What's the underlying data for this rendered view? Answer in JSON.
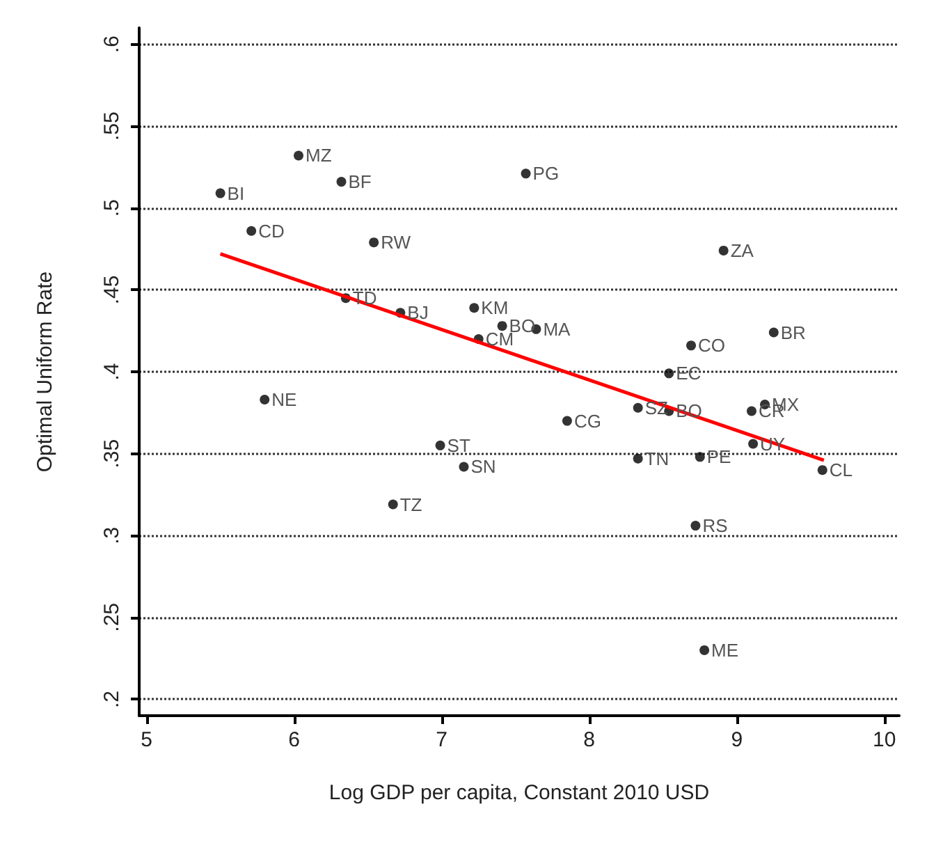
{
  "chart_data": {
    "type": "scatter",
    "xlabel": "Log GDP per capita, Constant 2010 USD",
    "ylabel": "Optimal Uniform Rate",
    "xlim": [
      4.95,
      10.1
    ],
    "xticks": [
      5,
      6,
      7,
      8,
      9,
      10
    ],
    "ylim": [
      0.19,
      0.61
    ],
    "yticks": [
      {
        "value": 0.2,
        "label": ".2"
      },
      {
        "value": 0.25,
        "label": ".25"
      },
      {
        "value": 0.3,
        "label": ".3"
      },
      {
        "value": 0.35,
        "label": ".35"
      },
      {
        "value": 0.4,
        "label": ".4"
      },
      {
        "value": 0.45,
        "label": ".45"
      },
      {
        "value": 0.5,
        "label": ".5"
      },
      {
        "value": 0.55,
        "label": ".55"
      },
      {
        "value": 0.6,
        "label": ".6"
      }
    ],
    "grid": "y",
    "marker": "circle",
    "series": [
      {
        "color": "#000000",
        "x": [
          6.03,
          6.32,
          5.5,
          7.57,
          5.71,
          6.54,
          8.91,
          6.35,
          6.72,
          7.22,
          7.41,
          7.64,
          7.25,
          8.69,
          9.25,
          8.54,
          5.8,
          8.33,
          8.54,
          9.19,
          9.1,
          7.85,
          9.11,
          6.99,
          8.33,
          8.75,
          7.15,
          9.58,
          6.67,
          8.72,
          8.78
        ],
        "values": [
          0.532,
          0.516,
          0.509,
          0.521,
          0.486,
          0.479,
          0.474,
          0.445,
          0.436,
          0.439,
          0.428,
          0.426,
          0.42,
          0.416,
          0.424,
          0.399,
          0.383,
          0.378,
          0.376,
          0.38,
          0.376,
          0.37,
          0.356,
          0.355,
          0.347,
          0.348,
          0.342,
          0.34,
          0.319,
          0.306,
          0.23
        ]
      },
      {
        "type": "line",
        "color": "#ff0000",
        "x": [
          5.5,
          9.59
        ],
        "values": [
          0.472,
          0.346
        ],
        "marker": "none",
        "line_style": "solid"
      }
    ],
    "annotations": [
      {
        "text": "MZ",
        "x": 6.03,
        "y": 0.532
      },
      {
        "text": "BF",
        "x": 6.32,
        "y": 0.516
      },
      {
        "text": "BI",
        "x": 5.5,
        "y": 0.509
      },
      {
        "text": "PG",
        "x": 7.57,
        "y": 0.521
      },
      {
        "text": "CD",
        "x": 5.71,
        "y": 0.486
      },
      {
        "text": "RW",
        "x": 6.54,
        "y": 0.479
      },
      {
        "text": "ZA",
        "x": 8.91,
        "y": 0.474
      },
      {
        "text": "TD",
        "x": 6.35,
        "y": 0.445
      },
      {
        "text": "BJ",
        "x": 6.72,
        "y": 0.436
      },
      {
        "text": "KM",
        "x": 7.22,
        "y": 0.439
      },
      {
        "text": "BO",
        "x": 7.41,
        "y": 0.428
      },
      {
        "text": "MA",
        "x": 7.64,
        "y": 0.426
      },
      {
        "text": "CM",
        "x": 7.25,
        "y": 0.42
      },
      {
        "text": "CO",
        "x": 8.69,
        "y": 0.416
      },
      {
        "text": "BR",
        "x": 9.25,
        "y": 0.424
      },
      {
        "text": "EC",
        "x": 8.54,
        "y": 0.399
      },
      {
        "text": "NE",
        "x": 5.8,
        "y": 0.383
      },
      {
        "text": "SZ",
        "x": 8.33,
        "y": 0.378
      },
      {
        "text": "BO",
        "x": 8.54,
        "y": 0.376
      },
      {
        "text": "MX",
        "x": 9.19,
        "y": 0.38
      },
      {
        "text": "CR",
        "x": 9.1,
        "y": 0.376
      },
      {
        "text": "CG",
        "x": 7.85,
        "y": 0.37
      },
      {
        "text": "UY",
        "x": 9.11,
        "y": 0.356
      },
      {
        "text": "ST",
        "x": 6.99,
        "y": 0.355
      },
      {
        "text": "TN",
        "x": 8.33,
        "y": 0.347
      },
      {
        "text": "PE",
        "x": 8.75,
        "y": 0.348
      },
      {
        "text": "SN",
        "x": 7.15,
        "y": 0.342
      },
      {
        "text": "CL",
        "x": 9.58,
        "y": 0.34
      },
      {
        "text": "TZ",
        "x": 6.67,
        "y": 0.319
      },
      {
        "text": "RS",
        "x": 8.72,
        "y": 0.306
      },
      {
        "text": "ME",
        "x": 8.78,
        "y": 0.23
      }
    ]
  }
}
